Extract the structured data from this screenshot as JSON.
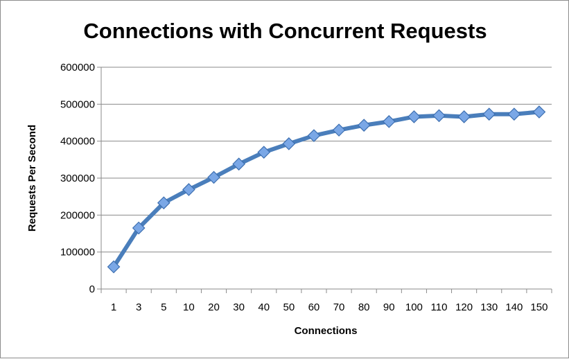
{
  "chart_data": {
    "type": "line",
    "title": "Connections with Concurrent Requests",
    "xlabel": "Connections",
    "ylabel": "Requests Per Second",
    "categories": [
      "1",
      "3",
      "5",
      "10",
      "20",
      "30",
      "40",
      "50",
      "60",
      "70",
      "80",
      "90",
      "100",
      "110",
      "120",
      "130",
      "140",
      "150"
    ],
    "series": [
      {
        "values": [
          60000,
          165000,
          233000,
          269000,
          302000,
          338000,
          370000,
          393000,
          415000,
          430000,
          443000,
          453000,
          466000,
          469000,
          466000,
          473000,
          473000,
          479000
        ],
        "color": "#4a7ebb",
        "marker": "diamond",
        "marker_color": "#7aa7e6"
      }
    ],
    "ylim": [
      0,
      600000
    ],
    "yticks": [
      "0",
      "100000",
      "200000",
      "300000",
      "400000",
      "500000",
      "600000"
    ],
    "ytick_values": [
      0,
      100000,
      200000,
      300000,
      400000,
      500000,
      600000
    ],
    "grid": true,
    "legend": "none"
  }
}
